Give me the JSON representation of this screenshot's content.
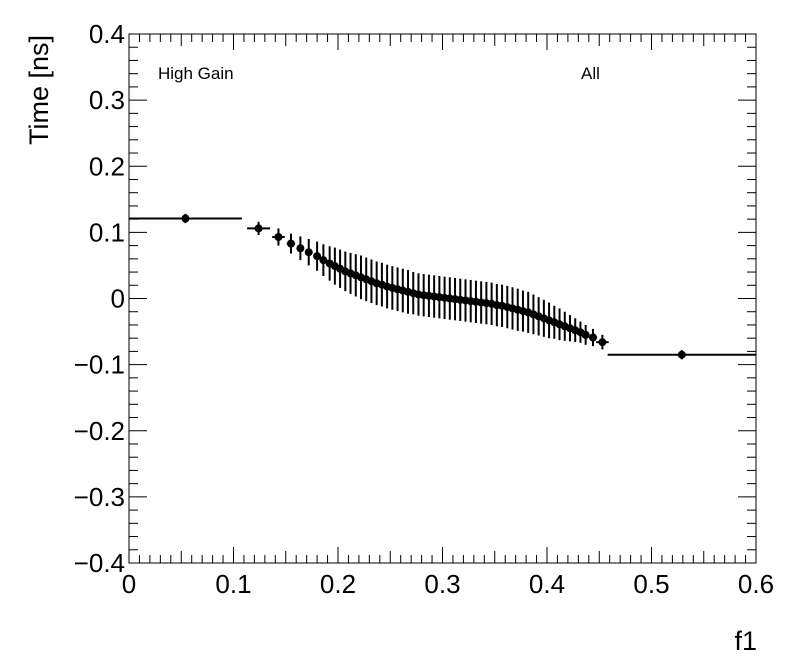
{
  "chart_data": {
    "type": "scatter",
    "xlabel": "f1",
    "ylabel": "Time [ns]",
    "xlim": [
      0,
      0.6
    ],
    "ylim": [
      -0.4,
      0.4
    ],
    "x_ticks": [
      0,
      0.1,
      0.2,
      0.3,
      0.4,
      0.5,
      0.6
    ],
    "x_tick_labels": [
      "0",
      "0.1",
      "0.2",
      "0.3",
      "0.4",
      "0.5",
      "0.6"
    ],
    "y_ticks": [
      -0.4,
      -0.3,
      -0.2,
      -0.1,
      0,
      0.1,
      0.2,
      0.3,
      0.4
    ],
    "y_tick_labels": [
      "−0.4",
      "−0.3",
      "−0.2",
      "−0.1",
      "0",
      "0.1",
      "0.2",
      "0.3",
      "0.4"
    ],
    "annotations": [
      "High Gain",
      "All"
    ],
    "grid": false,
    "series": [
      {
        "points": [
          {
            "x": 0.054,
            "y": 0.121,
            "xerr": 0.054,
            "yerr": 0.007
          },
          {
            "x": 0.124,
            "y": 0.106,
            "xerr": 0.011,
            "yerr": 0.01
          },
          {
            "x": 0.143,
            "y": 0.093,
            "xerr": 0.006,
            "yerr": 0.013
          },
          {
            "x": 0.155,
            "y": 0.083,
            "xerr": 0.004,
            "yerr": 0.015
          },
          {
            "x": 0.164,
            "y": 0.076,
            "xerr": 0.003,
            "yerr": 0.018
          },
          {
            "x": 0.172,
            "y": 0.07,
            "xerr": 0.002,
            "yerr": 0.02
          },
          {
            "x": 0.18,
            "y": 0.064,
            "xerr": 0.002,
            "yerr": 0.022
          },
          {
            "x": 0.186,
            "y": 0.058,
            "xerr": 0.002,
            "yerr": 0.024
          },
          {
            "x": 0.192,
            "y": 0.053,
            "xerr": 0.002,
            "yerr": 0.026
          },
          {
            "x": 0.197,
            "y": 0.049,
            "xerr": 0.002,
            "yerr": 0.028
          },
          {
            "x": 0.202,
            "y": 0.045,
            "xerr": 0.002,
            "yerr": 0.029
          },
          {
            "x": 0.207,
            "y": 0.041,
            "xerr": 0.002,
            "yerr": 0.03
          },
          {
            "x": 0.212,
            "y": 0.038,
            "xerr": 0.002,
            "yerr": 0.031
          },
          {
            "x": 0.217,
            "y": 0.035,
            "xerr": 0.002,
            "yerr": 0.032
          },
          {
            "x": 0.222,
            "y": 0.032,
            "xerr": 0.002,
            "yerr": 0.033
          },
          {
            "x": 0.227,
            "y": 0.029,
            "xerr": 0.002,
            "yerr": 0.033
          },
          {
            "x": 0.232,
            "y": 0.026,
            "xerr": 0.002,
            "yerr": 0.033
          },
          {
            "x": 0.237,
            "y": 0.023,
            "xerr": 0.002,
            "yerr": 0.033
          },
          {
            "x": 0.242,
            "y": 0.021,
            "xerr": 0.002,
            "yerr": 0.033
          },
          {
            "x": 0.247,
            "y": 0.018,
            "xerr": 0.002,
            "yerr": 0.033
          },
          {
            "x": 0.252,
            "y": 0.016,
            "xerr": 0.002,
            "yerr": 0.033
          },
          {
            "x": 0.257,
            "y": 0.014,
            "xerr": 0.002,
            "yerr": 0.033
          },
          {
            "x": 0.262,
            "y": 0.012,
            "xerr": 0.002,
            "yerr": 0.033
          },
          {
            "x": 0.267,
            "y": 0.01,
            "xerr": 0.002,
            "yerr": 0.033
          },
          {
            "x": 0.272,
            "y": 0.008,
            "xerr": 0.002,
            "yerr": 0.032
          },
          {
            "x": 0.277,
            "y": 0.006,
            "xerr": 0.002,
            "yerr": 0.032
          },
          {
            "x": 0.282,
            "y": 0.005,
            "xerr": 0.002,
            "yerr": 0.032
          },
          {
            "x": 0.287,
            "y": 0.004,
            "xerr": 0.002,
            "yerr": 0.032
          },
          {
            "x": 0.292,
            "y": 0.003,
            "xerr": 0.002,
            "yerr": 0.032
          },
          {
            "x": 0.297,
            "y": 0.002,
            "xerr": 0.002,
            "yerr": 0.032
          },
          {
            "x": 0.302,
            "y": 0.001,
            "xerr": 0.002,
            "yerr": 0.032
          },
          {
            "x": 0.307,
            "y": 0.0,
            "xerr": 0.002,
            "yerr": 0.032
          },
          {
            "x": 0.312,
            "y": -0.001,
            "xerr": 0.002,
            "yerr": 0.032
          },
          {
            "x": 0.317,
            "y": -0.002,
            "xerr": 0.002,
            "yerr": 0.032
          },
          {
            "x": 0.322,
            "y": -0.003,
            "xerr": 0.002,
            "yerr": 0.032
          },
          {
            "x": 0.327,
            "y": -0.004,
            "xerr": 0.002,
            "yerr": 0.032
          },
          {
            "x": 0.332,
            "y": -0.005,
            "xerr": 0.002,
            "yerr": 0.032
          },
          {
            "x": 0.337,
            "y": -0.006,
            "xerr": 0.002,
            "yerr": 0.032
          },
          {
            "x": 0.342,
            "y": -0.007,
            "xerr": 0.002,
            "yerr": 0.032
          },
          {
            "x": 0.347,
            "y": -0.008,
            "xerr": 0.002,
            "yerr": 0.032
          },
          {
            "x": 0.352,
            "y": -0.01,
            "xerr": 0.002,
            "yerr": 0.032
          },
          {
            "x": 0.357,
            "y": -0.011,
            "xerr": 0.002,
            "yerr": 0.032
          },
          {
            "x": 0.362,
            "y": -0.013,
            "xerr": 0.002,
            "yerr": 0.032
          },
          {
            "x": 0.367,
            "y": -0.015,
            "xerr": 0.002,
            "yerr": 0.032
          },
          {
            "x": 0.372,
            "y": -0.017,
            "xerr": 0.002,
            "yerr": 0.032
          },
          {
            "x": 0.377,
            "y": -0.019,
            "xerr": 0.002,
            "yerr": 0.031
          },
          {
            "x": 0.382,
            "y": -0.021,
            "xerr": 0.002,
            "yerr": 0.031
          },
          {
            "x": 0.387,
            "y": -0.024,
            "xerr": 0.002,
            "yerr": 0.03
          },
          {
            "x": 0.392,
            "y": -0.027,
            "xerr": 0.002,
            "yerr": 0.029
          },
          {
            "x": 0.397,
            "y": -0.03,
            "xerr": 0.002,
            "yerr": 0.028
          },
          {
            "x": 0.402,
            "y": -0.033,
            "xerr": 0.002,
            "yerr": 0.027
          },
          {
            "x": 0.407,
            "y": -0.036,
            "xerr": 0.002,
            "yerr": 0.025
          },
          {
            "x": 0.412,
            "y": -0.039,
            "xerr": 0.002,
            "yerr": 0.024
          },
          {
            "x": 0.417,
            "y": -0.042,
            "xerr": 0.002,
            "yerr": 0.022
          },
          {
            "x": 0.422,
            "y": -0.045,
            "xerr": 0.002,
            "yerr": 0.02
          },
          {
            "x": 0.427,
            "y": -0.048,
            "xerr": 0.002,
            "yerr": 0.018
          },
          {
            "x": 0.432,
            "y": -0.051,
            "xerr": 0.002,
            "yerr": 0.016
          },
          {
            "x": 0.437,
            "y": -0.055,
            "xerr": 0.003,
            "yerr": 0.015
          },
          {
            "x": 0.444,
            "y": -0.059,
            "xerr": 0.004,
            "yerr": 0.013
          },
          {
            "x": 0.453,
            "y": -0.066,
            "xerr": 0.006,
            "yerr": 0.011
          },
          {
            "x": 0.529,
            "y": -0.085,
            "xerr": 0.071,
            "yerr": 0.007
          }
        ]
      }
    ]
  }
}
